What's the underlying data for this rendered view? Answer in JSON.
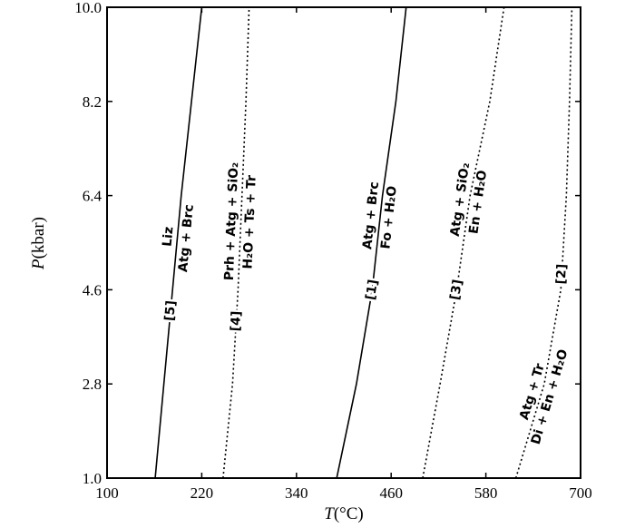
{
  "chart_data": {
    "type": "line",
    "x_label": {
      "symbol": "T",
      "unit": "(°C)"
    },
    "y_label": {
      "symbol": "P",
      "unit": "(kbar)"
    },
    "xlim": [
      100,
      700
    ],
    "xticks": [
      100,
      220,
      340,
      460,
      580,
      700
    ],
    "ylim": [
      1.0,
      10.0
    ],
    "yticks": [
      {
        "value": 1.0,
        "label": "1.0"
      },
      2.8,
      4.6,
      6.4,
      8.2,
      {
        "value": 10.0,
        "label": "10.0"
      }
    ],
    "series": [
      {
        "label": "[5]",
        "style": "solid",
        "reaction": [
          "Liz",
          "Atg + Brc"
        ],
        "x": [
          161,
          172,
          183,
          194,
          207,
          220
        ],
        "values": [
          1.0,
          2.8,
          4.6,
          6.4,
          8.2,
          10.0
        ]
      },
      {
        "label": "[4]",
        "style": "dotted",
        "reaction": [
          "Prh + Atg + SiO₂",
          "H₂O + Ts + Tr"
        ],
        "x": [
          247,
          259,
          266,
          271,
          276,
          280
        ],
        "values": [
          1.0,
          2.8,
          4.6,
          6.4,
          8.2,
          10.0
        ]
      },
      {
        "label": "[1]",
        "style": "solid",
        "reaction": [
          "Atg + Brc",
          "Fo + H₂O"
        ],
        "x": [
          391,
          416,
          436,
          449,
          466,
          479
        ],
        "values": [
          1.0,
          2.8,
          4.6,
          6.4,
          8.2,
          10.0
        ]
      },
      {
        "label": "[3]",
        "style": "dotted",
        "reaction": [
          "Atg + SiO₂",
          "En + H₂O"
        ],
        "x": [
          500,
          522,
          543,
          560,
          585,
          603
        ],
        "values": [
          1.0,
          2.8,
          4.6,
          6.4,
          8.2,
          10.0
        ]
      },
      {
        "label": "[2]",
        "style": "dotted",
        "reaction": [
          "Atg + Tr",
          "Di + En + H₂O"
        ],
        "x": [
          618,
          654,
          675,
          682,
          686,
          689
        ],
        "values": [
          1.0,
          2.8,
          4.6,
          6.4,
          8.2,
          10.0
        ]
      }
    ]
  }
}
